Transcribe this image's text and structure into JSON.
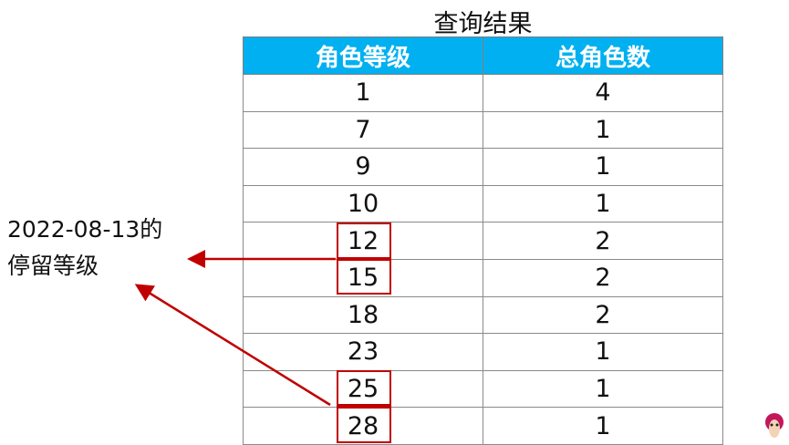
{
  "title": "查询结果",
  "table": {
    "headers": [
      "角色等级",
      "总角色数"
    ],
    "rows": [
      [
        "1",
        "4"
      ],
      [
        "7",
        "1"
      ],
      [
        "9",
        "1"
      ],
      [
        "10",
        "1"
      ],
      [
        "12",
        "2"
      ],
      [
        "15",
        "2"
      ],
      [
        "18",
        "2"
      ],
      [
        "23",
        "1"
      ],
      [
        "25",
        "1"
      ],
      [
        "28",
        "1"
      ]
    ]
  },
  "annotation": {
    "line1": "2022-08-13的",
    "line2": "停留等级"
  },
  "colors": {
    "header": "#00b0f0",
    "highlight": "#c00000"
  },
  "logo_icon": "monkey-head-icon"
}
